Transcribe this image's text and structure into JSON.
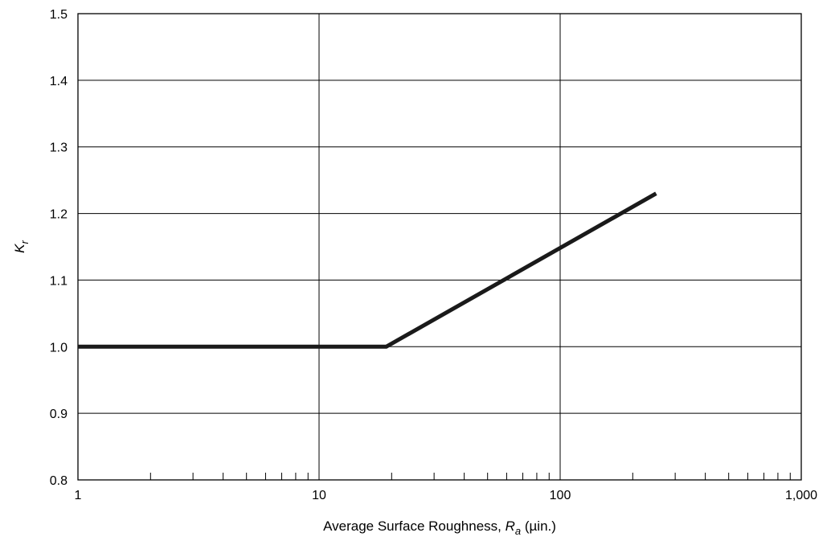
{
  "chart_data": {
    "type": "line",
    "title": "",
    "xscale": "log",
    "xlim": [
      1,
      1000
    ],
    "ylim": [
      0.8,
      1.5
    ],
    "grid": true,
    "x_ticks": [
      1,
      10,
      100,
      1000
    ],
    "x_tick_labels": [
      "1",
      "10",
      "100",
      "1,000"
    ],
    "y_ticks": [
      0.8,
      0.9,
      1.0,
      1.1,
      1.2,
      1.3,
      1.4,
      1.5
    ],
    "y_tick_labels": [
      "0.8",
      "0.9",
      "1.0",
      "1.1",
      "1.2",
      "1.3",
      "1.4",
      "1.5"
    ],
    "xlabel": {
      "prefix": "Average Surface Roughness, ",
      "var": "R",
      "sub": "a",
      "unit": " (µin.)"
    },
    "ylabel": {
      "var": "K",
      "sub": "r"
    },
    "series": [
      {
        "x": [
          1,
          19,
          250
        ],
        "y": [
          1.0,
          1.0,
          1.23
        ]
      }
    ]
  }
}
